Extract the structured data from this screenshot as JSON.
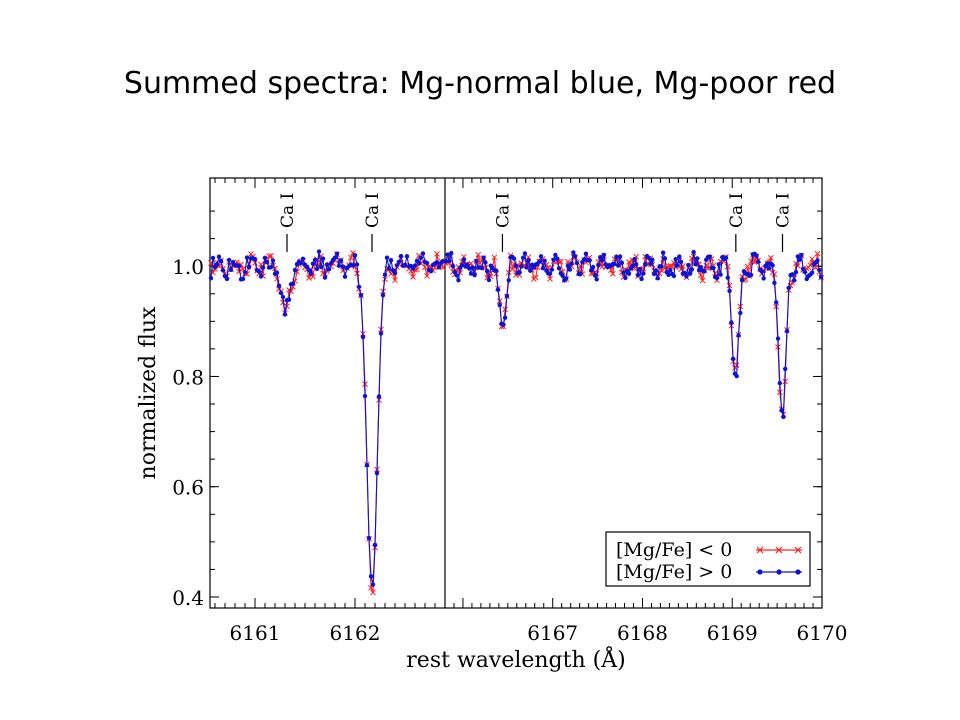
{
  "slide": {
    "title": "Summed spectra: Mg-normal blue, Mg-poor red"
  },
  "colors": {
    "mg_poor": "#ff2020",
    "mg_normal": "#0a14d8",
    "axes": "#000000"
  },
  "chart_data": {
    "type": "line",
    "ylabel": "normalized flux",
    "xlabel": "rest wavelength (Å)",
    "ylim": [
      0.38,
      1.16
    ],
    "yticks": [
      "1.0",
      "0.8",
      "0.6",
      "0.4"
    ],
    "panels": [
      {
        "xlim": [
          6160.55,
          6162.9
        ],
        "xticks": [
          "6161",
          "6162"
        ],
        "lines": [
          {
            "label": "Ca I",
            "x": 6161.32
          },
          {
            "label": "Ca I",
            "x": 6162.17
          }
        ]
      },
      {
        "xlim": [
          6165.8,
          6170.0
        ],
        "xticks": [
          "6167",
          "6168",
          "6169",
          "6170"
        ],
        "lines": [
          {
            "label": "Ca I",
            "x": 6166.44
          },
          {
            "label": "Ca I",
            "x": 6169.04
          },
          {
            "label": "Ca I",
            "x": 6169.56
          }
        ]
      }
    ],
    "series": [
      {
        "name": "[Mg/Fe] < 0",
        "color": "#ff2020",
        "marker": "x"
      },
      {
        "name": "[Mg/Fe] > 0",
        "color": "#0a14d8",
        "marker": "dot"
      }
    ],
    "absorption_lines": [
      {
        "panel": 0,
        "center": 6161.3,
        "depth_mg_normal": 0.09,
        "depth_mg_poor": 0.11
      },
      {
        "panel": 0,
        "center": 6162.17,
        "depth_mg_normal": 0.6,
        "depth_mg_poor": 0.62
      },
      {
        "panel": 1,
        "center": 6166.44,
        "depth_mg_normal": 0.1,
        "depth_mg_poor": 0.12
      },
      {
        "panel": 1,
        "center": 6169.04,
        "depth_mg_normal": 0.2,
        "depth_mg_poor": 0.21
      },
      {
        "panel": 1,
        "center": 6169.56,
        "depth_mg_normal": 0.28,
        "depth_mg_poor": 0.29
      }
    ],
    "legend": {
      "placement": "bottom-right"
    },
    "grid": false
  }
}
